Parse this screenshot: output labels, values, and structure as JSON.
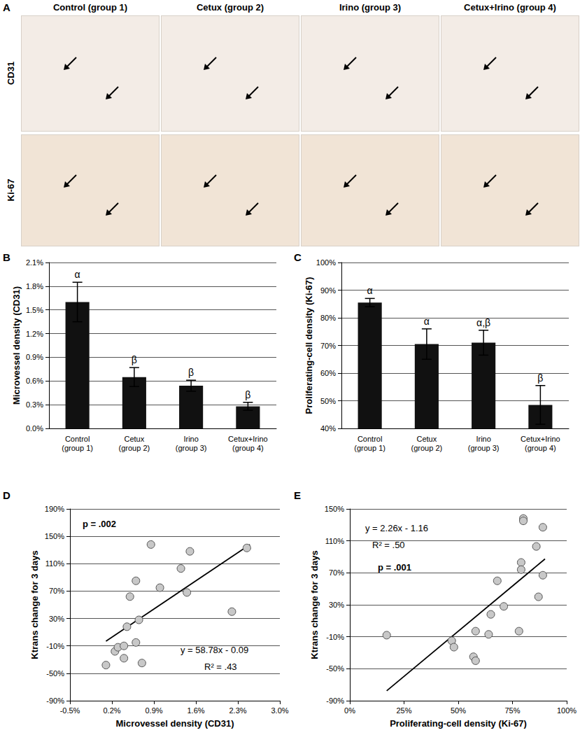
{
  "panel_a": {
    "title": "A",
    "columns": [
      "Control (group 1)",
      "Cetux (group 2)",
      "Irino (group 3)",
      "Cetux+Irino (group 4)"
    ],
    "rows": [
      "CD31",
      "Ki-67"
    ]
  },
  "chart_data": [
    {
      "type": "bar",
      "title": "B",
      "categories": [
        "Control (group 1)",
        "Cetux (group 2)",
        "Irino (group 3)",
        "Cetux+Irino (group 4)"
      ],
      "values": [
        1.6,
        0.65,
        0.54,
        0.28
      ],
      "errors": [
        0.25,
        0.12,
        0.07,
        0.05
      ],
      "letters": [
        "α",
        "β",
        "β",
        "β"
      ],
      "ylabel": "Microvessel density (CD31)",
      "color": "#111111",
      "ylim": [
        0,
        2.1
      ],
      "yticks": [
        {
          "value": 0,
          "label": "0.0%"
        },
        {
          "value": 0.3,
          "label": "0.3%"
        },
        {
          "value": 0.6,
          "label": "0.6%"
        },
        {
          "value": 0.9,
          "label": "0.9%"
        },
        {
          "value": 1.2,
          "label": "1.2%"
        },
        {
          "value": 1.5,
          "label": "1.5%"
        },
        {
          "value": 1.8,
          "label": "1.8%"
        },
        {
          "value": 2.1,
          "label": "2.1%"
        }
      ],
      "grid": true
    },
    {
      "type": "bar",
      "title": "C",
      "categories": [
        "Control (group 1)",
        "Cetux (group 2)",
        "Irino (group 3)",
        "Cetux+Irino (group 4)"
      ],
      "values": [
        85.5,
        70.5,
        71,
        48.5
      ],
      "errors": [
        1.5,
        5.5,
        4.5,
        7
      ],
      "letters": [
        "α",
        "α",
        "α,β",
        "β"
      ],
      "ylabel": "Proliferating-cell density (Ki-67)",
      "color": "#111111",
      "ylim": [
        40,
        100
      ],
      "yticks": [
        {
          "value": 40,
          "label": "40%"
        },
        {
          "value": 50,
          "label": "50%"
        },
        {
          "value": 60,
          "label": "60%"
        },
        {
          "value": 70,
          "label": "70%"
        },
        {
          "value": 80,
          "label": "80%"
        },
        {
          "value": 90,
          "label": "90%"
        },
        {
          "value": 100,
          "label": "100%"
        }
      ],
      "grid": true
    },
    {
      "type": "scatter",
      "title": "D",
      "x": [
        0.1,
        0.25,
        0.3,
        0.4,
        0.4,
        0.45,
        0.5,
        0.6,
        0.6,
        0.65,
        0.7,
        0.85,
        1.0,
        1.35,
        1.45,
        1.5,
        2.2,
        2.45
      ],
      "y": [
        -38,
        -18,
        -12,
        -10,
        -28,
        18,
        62,
        -5,
        85,
        28,
        -35,
        138,
        75,
        103,
        68,
        128,
        40,
        133
      ],
      "color": "#c8c8c8",
      "fit_line": {
        "type": "line",
        "color": "#000000",
        "x": [
          0.1,
          2.5
        ],
        "y": [
          -3.1,
          137.9
        ]
      },
      "annotations": [
        "p = .002",
        "y = 58.78x - 0.09",
        "R² = .43"
      ],
      "xlabel": "Microvessel density (CD31)",
      "ylabel": "Ktrans change for 3 days",
      "xlim": [
        -0.5,
        3.0
      ],
      "xticks": [
        {
          "value": -0.5,
          "label": "-0.5%"
        },
        {
          "value": 0.2,
          "label": "0.2%"
        },
        {
          "value": 0.9,
          "label": "0.9%"
        },
        {
          "value": 1.6,
          "label": "1.6%"
        },
        {
          "value": 2.3,
          "label": "2.3%"
        },
        {
          "value": 3.0,
          "label": "3.0%"
        }
      ],
      "ylim": [
        -90,
        190
      ],
      "yticks": [
        {
          "value": -90,
          "label": "-90%"
        },
        {
          "value": -50,
          "label": "-50%"
        },
        {
          "value": -10,
          "label": "-10%"
        },
        {
          "value": 30,
          "label": "30%"
        },
        {
          "value": 70,
          "label": "70%"
        },
        {
          "value": 110,
          "label": "110%"
        },
        {
          "value": 150,
          "label": "150%"
        },
        {
          "value": 190,
          "label": "190%"
        }
      ],
      "grid": true
    },
    {
      "type": "scatter",
      "title": "E",
      "x": [
        17,
        47,
        48,
        57,
        58,
        58,
        64,
        65,
        68,
        71,
        78,
        79,
        79,
        80,
        80,
        86,
        87,
        89,
        89
      ],
      "y": [
        -8,
        -15,
        -23,
        -35,
        -40,
        -3,
        -7,
        18,
        60,
        28,
        -3,
        83,
        74,
        138,
        135,
        103,
        40,
        127,
        67
      ],
      "color": "#c8c8c8",
      "fit_line": {
        "type": "line",
        "color": "#000000",
        "x": [
          17,
          90
        ],
        "y": [
          -77.6,
          87.4
        ]
      },
      "annotations": [
        "y = 2.26x - 1.16",
        "R² = .50",
        "p = .001"
      ],
      "xlabel": "Proliferating-cell density (Ki-67)",
      "ylabel": "Ktrans change for 3 days",
      "xlim": [
        0,
        100
      ],
      "xticks": [
        {
          "value": 0,
          "label": "0%"
        },
        {
          "value": 25,
          "label": "25%"
        },
        {
          "value": 50,
          "label": "50%"
        },
        {
          "value": 75,
          "label": "75%"
        },
        {
          "value": 100,
          "label": "100%"
        }
      ],
      "ylim": [
        -90,
        150
      ],
      "yticks": [
        {
          "value": -90,
          "label": "-90%"
        },
        {
          "value": -50,
          "label": "-50%"
        },
        {
          "value": -10,
          "label": "-10%"
        },
        {
          "value": 30,
          "label": "30%"
        },
        {
          "value": 70,
          "label": "70%"
        },
        {
          "value": 110,
          "label": "110%"
        },
        {
          "value": 150,
          "label": "150%"
        }
      ],
      "grid": true
    }
  ]
}
